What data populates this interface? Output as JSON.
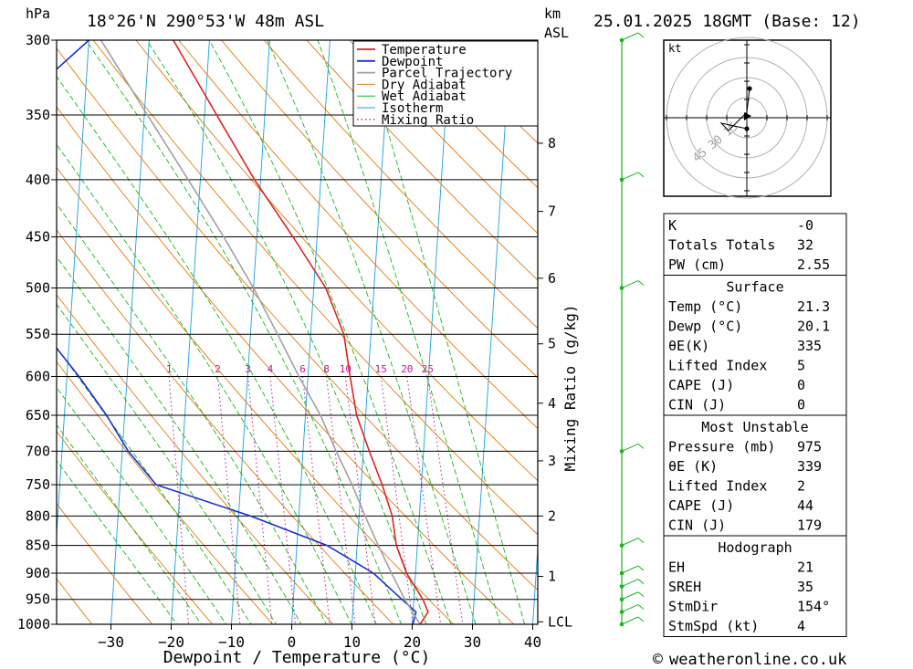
{
  "header": {
    "pressure_unit": "hPa",
    "location": "18°26'N  290°53'W  48m  ASL",
    "height_unit_line1": "km",
    "height_unit_line2": "ASL",
    "datetime": "25.01.2025  18GMT  (Base: 12)"
  },
  "colors": {
    "temperature": "#e02020",
    "dewpoint": "#1a2fd0",
    "parcel": "#a0a0a0",
    "dry_adiabat": "#e07a10",
    "wet_adiabat": "#19b419",
    "isotherm": "#1aa0e0",
    "mixing_ratio": "#c01890",
    "wind": "#19b419"
  },
  "chart_data": {
    "type": "line",
    "xlabel": "Dewpoint / Temperature (°C)",
    "ylabel": "Mixing Ratio (g/kg)",
    "x_ticks": [
      -30,
      -20,
      -10,
      0,
      10,
      20,
      30,
      40
    ],
    "pressure_ticks": [
      300,
      350,
      400,
      450,
      500,
      550,
      600,
      650,
      700,
      750,
      800,
      850,
      900,
      950,
      1000
    ],
    "height_ticks": [
      {
        "label": "8",
        "p": 371
      },
      {
        "label": "7",
        "p": 427
      },
      {
        "label": "6",
        "p": 490
      },
      {
        "label": "5",
        "p": 561
      },
      {
        "label": "4",
        "p": 634
      },
      {
        "label": "3",
        "p": 714
      },
      {
        "label": "2",
        "p": 800
      },
      {
        "label": "1",
        "p": 906
      },
      {
        "label": "LCL",
        "p": 995
      }
    ],
    "mixing_ratio_labels": [
      "1",
      "2",
      "3",
      "4",
      "6",
      "8",
      "10",
      "15",
      "20",
      "25"
    ],
    "mixing_ratio_values": [
      1,
      2,
      3,
      4,
      6,
      8,
      10,
      15,
      20,
      25
    ],
    "legend": [
      "Temperature",
      "Dewpoint",
      "Parcel Trajectory",
      "Dry Adiabat",
      "Wet Adiabat",
      "Isotherm",
      "Mixing Ratio"
    ],
    "legend_placement": "top-right",
    "series": [
      {
        "name": "Temperature",
        "points": [
          {
            "p": 1000,
            "t": 21.3
          },
          {
            "p": 975,
            "t": 22.5
          },
          {
            "p": 950,
            "t": 21.5
          },
          {
            "p": 900,
            "t": 18.5
          },
          {
            "p": 850,
            "t": 16.5
          },
          {
            "p": 800,
            "t": 15.5
          },
          {
            "p": 750,
            "t": 13.5
          },
          {
            "p": 700,
            "t": 11
          },
          {
            "p": 650,
            "t": 8.5
          },
          {
            "p": 600,
            "t": 7
          },
          {
            "p": 550,
            "t": 5.5
          },
          {
            "p": 500,
            "t": 2
          },
          {
            "p": 450,
            "t": -4
          },
          {
            "p": 400,
            "t": -11
          },
          {
            "p": 350,
            "t": -18
          },
          {
            "p": 300,
            "t": -26
          }
        ]
      },
      {
        "name": "Dewpoint",
        "points": [
          {
            "p": 1000,
            "t": 20.1
          },
          {
            "p": 975,
            "t": 20.5
          },
          {
            "p": 950,
            "t": 18
          },
          {
            "p": 900,
            "t": 13
          },
          {
            "p": 850,
            "t": 5
          },
          {
            "p": 800,
            "t": -8
          },
          {
            "p": 750,
            "t": -24
          },
          {
            "p": 700,
            "t": -29
          },
          {
            "p": 650,
            "t": -33
          },
          {
            "p": 600,
            "t": -38
          },
          {
            "p": 550,
            "t": -44
          },
          {
            "p": 500,
            "t": -47
          },
          {
            "p": 450,
            "t": -51
          },
          {
            "p": 400,
            "t": -56
          },
          {
            "p": 350,
            "t": -53
          },
          {
            "p": 300,
            "t": -40
          }
        ]
      },
      {
        "name": "Parcel Trajectory",
        "points": [
          {
            "p": 1000,
            "t": 21.3
          },
          {
            "p": 950,
            "t": 18.5
          },
          {
            "p": 900,
            "t": 16
          },
          {
            "p": 850,
            "t": 13.5
          },
          {
            "p": 800,
            "t": 11
          },
          {
            "p": 750,
            "t": 8.5
          },
          {
            "p": 700,
            "t": 5.5
          },
          {
            "p": 650,
            "t": 2.5
          },
          {
            "p": 600,
            "t": -1.5
          },
          {
            "p": 550,
            "t": -5.5
          },
          {
            "p": 500,
            "t": -10
          },
          {
            "p": 450,
            "t": -15.5
          },
          {
            "p": 400,
            "t": -22
          },
          {
            "p": 350,
            "t": -29.5
          },
          {
            "p": 300,
            "t": -38
          }
        ]
      }
    ],
    "wind_profile_levels": [
      1000,
      975,
      950,
      925,
      900,
      850,
      700,
      500,
      400,
      300
    ]
  },
  "hodograph": {
    "unit_label": "kt",
    "ring_labels": [
      "15",
      "30",
      "45"
    ],
    "ring_values": [
      15,
      30,
      45
    ]
  },
  "indices": [
    {
      "rows": [
        {
          "label": "K",
          "value": "-0"
        },
        {
          "label": "Totals Totals",
          "value": "32"
        },
        {
          "label": "PW (cm)",
          "value": "2.55"
        }
      ]
    },
    {
      "title": "Surface",
      "rows": [
        {
          "label": "Temp (°C)",
          "value": "21.3"
        },
        {
          "label": "Dewp (°C)",
          "value": "20.1"
        },
        {
          "label": "θE(K)",
          "value": "335"
        },
        {
          "label": "Lifted Index",
          "value": "5"
        },
        {
          "label": "CAPE (J)",
          "value": "0"
        },
        {
          "label": "CIN (J)",
          "value": "0"
        }
      ]
    },
    {
      "title": "Most Unstable",
      "rows": [
        {
          "label": "Pressure (mb)",
          "value": "975"
        },
        {
          "label": "θE (K)",
          "value": "339"
        },
        {
          "label": "Lifted Index",
          "value": "2"
        },
        {
          "label": "CAPE (J)",
          "value": "44"
        },
        {
          "label": "CIN (J)",
          "value": "179"
        }
      ]
    },
    {
      "title": "Hodograph",
      "rows": [
        {
          "label": "EH",
          "value": "21"
        },
        {
          "label": "SREH",
          "value": "35"
        },
        {
          "label": "StmDir",
          "value": "154°"
        },
        {
          "label": "StmSpd (kt)",
          "value": "4"
        }
      ]
    }
  ],
  "footer": {
    "copyright_symbol": "©",
    "credit": "weatheronline.co.uk"
  }
}
